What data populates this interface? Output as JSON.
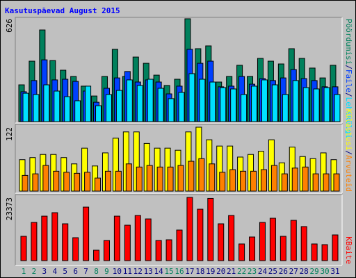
{
  "chart_data": [
    {
      "type": "bar",
      "title": "Kasutuspäevad August 2015",
      "ylim": [
        0,
        626
      ],
      "yticks": [
        626
      ],
      "legend_separator": "/",
      "series": [
        {
          "name": "Pöördumisi",
          "color": "#00805c",
          "values": [
            224,
            368,
            558,
            372,
            313,
            275,
            216,
            156,
            275,
            440,
            275,
            393,
            355,
            283,
            220,
            258,
            626,
            444,
            461,
            241,
            275,
            343,
            275,
            385,
            368,
            351,
            444,
            385,
            326,
            266,
            343
          ]
        },
        {
          "name": "Faile",
          "color": "#0040ff",
          "values": [
            182,
            250,
            376,
            254,
            258,
            245,
            186,
            118,
            203,
            266,
            305,
            241,
            254,
            241,
            169,
            216,
            440,
            355,
            368,
            212,
            216,
            275,
            228,
            262,
            250,
            266,
            317,
            262,
            250,
            212,
            212
          ]
        },
        {
          "name": "Lehekülgi",
          "color": "#00e0ff",
          "values": [
            173,
            165,
            224,
            186,
            152,
            127,
            216,
            97,
            165,
            190,
            254,
            220,
            258,
            203,
            140,
            178,
            292,
            258,
            241,
            207,
            199,
            165,
            216,
            254,
            224,
            165,
            250,
            207,
            199,
            207,
            165
          ]
        }
      ]
    },
    {
      "type": "bar",
      "ylim": [
        0,
        122
      ],
      "yticks": [
        122
      ],
      "legend_separator": "/",
      "series": [
        {
          "name": "Külastusi",
          "color": "#ffff00",
          "values": [
            60,
            64,
            70,
            70,
            64,
            52,
            82,
            48,
            73,
            101,
            113,
            113,
            91,
            82,
            82,
            78,
            113,
            122,
            98,
            86,
            86,
            65,
            70,
            76,
            98,
            54,
            84,
            66,
            62,
            73,
            60
          ]
        },
        {
          "name": "Arvuteid",
          "color": "#ff8000",
          "values": [
            30,
            33,
            49,
            38,
            36,
            34,
            36,
            25,
            38,
            38,
            52,
            46,
            49,
            46,
            46,
            49,
            57,
            62,
            52,
            36,
            41,
            38,
            38,
            41,
            49,
            33,
            44,
            46,
            33,
            33,
            33
          ]
        }
      ]
    },
    {
      "type": "bar",
      "ylim": [
        0,
        23373
      ],
      "yticks": [
        23373
      ],
      "categories": [
        "1",
        "2",
        "3",
        "4",
        "5",
        "6",
        "7",
        "8",
        "9",
        "10",
        "11",
        "12",
        "13",
        "14",
        "15",
        "16",
        "17",
        "18",
        "19",
        "20",
        "21",
        "22",
        "23",
        "24",
        "25",
        "26",
        "27",
        "28",
        "29",
        "30",
        "31"
      ],
      "category_colors": [
        "#00805c",
        "#00805c",
        "#000080",
        "#000080",
        "#000080",
        "#000080",
        "#000080",
        "#00805c",
        "#00805c",
        "#000080",
        "#000080",
        "#000080",
        "#000080",
        "#000080",
        "#00805c",
        "#00805c",
        "#000080",
        "#000080",
        "#000080",
        "#000080",
        "#000080",
        "#00805c",
        "#00805c",
        "#000080",
        "#000080",
        "#000080",
        "#000080",
        "#000080",
        "#00805c",
        "#00805c",
        "#000080"
      ],
      "series": [
        {
          "name": "KBaite",
          "color": "#ff0000",
          "values": [
            8988,
            14124,
            16435,
            17720,
            13611,
            8474,
            19775,
            3852,
            7448,
            16435,
            13097,
            16693,
            15409,
            7448,
            7705,
            11300,
            23373,
            19004,
            23000,
            13611,
            16693,
            6164,
            8732,
            14124,
            15666,
            8988,
            14895,
            12584,
            6164,
            5907,
            9502
          ]
        }
      ]
    }
  ]
}
